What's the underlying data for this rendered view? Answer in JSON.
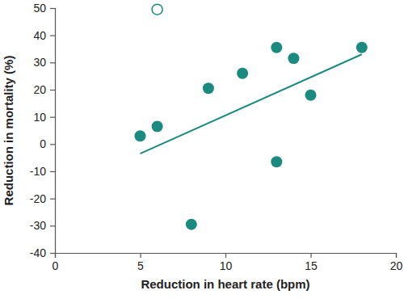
{
  "chart_data": {
    "type": "scatter",
    "x_label": "Reduction in heart rate (bpm)",
    "y_label": "Reduction in mortality (%)",
    "xlim": [
      0,
      20
    ],
    "xticks": [
      0,
      5,
      10,
      15,
      20
    ],
    "ylim": [
      -40,
      50
    ],
    "yticks": [
      -40,
      -30,
      -20,
      -10,
      0,
      10,
      20,
      30,
      40,
      50
    ],
    "grid": false,
    "series": [
      {
        "type": "scatter",
        "marker": "circle",
        "color": "#1b8a7f",
        "x": [
          5,
          6,
          8,
          9,
          11,
          13,
          13,
          14,
          15,
          18
        ],
        "values": [
          3,
          6.5,
          -29.5,
          20.5,
          26,
          35.5,
          -6.5,
          31.5,
          18,
          35.5
        ]
      },
      {
        "type": "scatter",
        "marker": "open-circle",
        "color": "#1b8a7f",
        "x": [
          6
        ],
        "values": [
          49.5
        ]
      },
      {
        "type": "line",
        "line_style": "solid",
        "color": "#1b8a7f",
        "x": [
          5,
          18
        ],
        "values": [
          -3.5,
          33
        ]
      }
    ]
  }
}
